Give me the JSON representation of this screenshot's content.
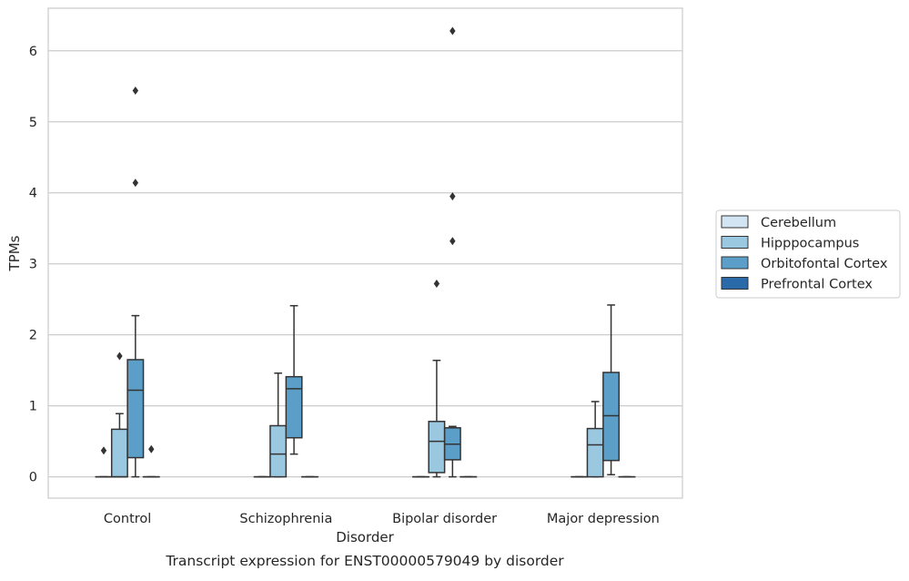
{
  "chart_data": {
    "type": "box",
    "title": "Transcript expression for ENST00000579049 by disorder",
    "xlabel": "Disorder",
    "ylabel": "TPMs",
    "categories": [
      "Control",
      "Schizophrenia",
      "Bipolar disorder",
      "Major depression"
    ],
    "ylim": [
      -0.3,
      6.6
    ],
    "yticks": [
      0,
      1,
      2,
      3,
      4,
      5,
      6
    ],
    "grid": true,
    "legend_position": "right",
    "series": [
      {
        "name": "Cerebellum",
        "color": "#d3e4f3",
        "boxes": [
          {
            "q1": 0,
            "median": 0,
            "q3": 0,
            "whisker_low": 0,
            "whisker_high": 0,
            "outliers": [
              0.37
            ]
          },
          {
            "q1": 0,
            "median": 0,
            "q3": 0,
            "whisker_low": 0,
            "whisker_high": 0,
            "outliers": []
          },
          {
            "q1": 0,
            "median": 0,
            "q3": 0,
            "whisker_low": 0,
            "whisker_high": 0,
            "outliers": []
          },
          {
            "q1": 0,
            "median": 0,
            "q3": 0,
            "whisker_low": 0,
            "whisker_high": 0,
            "outliers": []
          }
        ]
      },
      {
        "name": "Hipppocampus",
        "color": "#9ac8e0",
        "boxes": [
          {
            "q1": 0,
            "median": 0,
            "q3": 0.67,
            "whisker_low": 0,
            "whisker_high": 0.89,
            "outliers": [
              1.7
            ]
          },
          {
            "q1": 0,
            "median": 0.32,
            "q3": 0.72,
            "whisker_low": 0,
            "whisker_high": 1.46,
            "outliers": []
          },
          {
            "q1": 0.06,
            "median": 0.5,
            "q3": 0.78,
            "whisker_low": 0,
            "whisker_high": 1.64,
            "outliers": [
              2.72
            ]
          },
          {
            "q1": 0,
            "median": 0.45,
            "q3": 0.68,
            "whisker_low": 0,
            "whisker_high": 1.06,
            "outliers": []
          }
        ]
      },
      {
        "name": "Orbitofontal Cortex",
        "color": "#5b9fc9",
        "boxes": [
          {
            "q1": 0.27,
            "median": 1.22,
            "q3": 1.65,
            "whisker_low": 0,
            "whisker_high": 2.27,
            "outliers": [
              4.14,
              5.44
            ]
          },
          {
            "q1": 0.55,
            "median": 1.24,
            "q3": 1.41,
            "whisker_low": 0.32,
            "whisker_high": 2.41,
            "outliers": []
          },
          {
            "q1": 0.24,
            "median": 0.46,
            "q3": 0.69,
            "whisker_low": 0,
            "whisker_high": 0.71,
            "outliers": [
              3.32,
              3.95,
              6.28
            ]
          },
          {
            "q1": 0.23,
            "median": 0.86,
            "q3": 1.47,
            "whisker_low": 0.03,
            "whisker_high": 2.42,
            "outliers": []
          }
        ]
      },
      {
        "name": "Prefrontal Cortex",
        "color": "#2a6aa8",
        "boxes": [
          {
            "q1": 0,
            "median": 0,
            "q3": 0,
            "whisker_low": 0,
            "whisker_high": 0,
            "outliers": [
              0.39
            ]
          },
          {
            "q1": 0,
            "median": 0,
            "q3": 0,
            "whisker_low": 0,
            "whisker_high": 0,
            "outliers": []
          },
          {
            "q1": 0,
            "median": 0,
            "q3": 0,
            "whisker_low": 0,
            "whisker_high": 0,
            "outliers": []
          },
          {
            "q1": 0,
            "median": 0,
            "q3": 0,
            "whisker_low": 0,
            "whisker_high": 0,
            "outliers": []
          }
        ]
      }
    ]
  }
}
